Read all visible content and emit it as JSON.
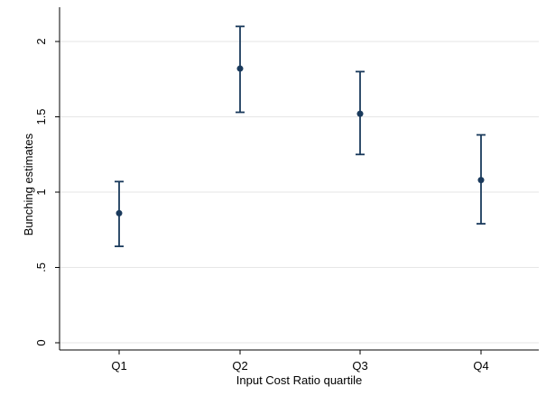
{
  "chart_data": {
    "type": "scatter",
    "title": "",
    "xlabel": "Input Cost Ratio quartile",
    "ylabel": "Bunching estimates",
    "categories": [
      "Q1",
      "Q2",
      "Q3",
      "Q4"
    ],
    "series": [
      {
        "values": [
          0.86,
          1.82,
          1.52,
          1.08
        ],
        "ci_lower": [
          0.64,
          1.53,
          1.25,
          0.79
        ],
        "ci_upper": [
          1.07,
          2.1,
          1.8,
          1.38
        ]
      }
    ],
    "ylim": [
      0,
      2.15
    ],
    "yticks": [
      0,
      0.5,
      1,
      1.5,
      2
    ],
    "ytick_labels": [
      "0",
      ".5",
      "1",
      "1.5",
      "2"
    ],
    "grid": "horizontal",
    "marker_color": "#1a3a5c",
    "grid_color": "#e6e6e6"
  }
}
